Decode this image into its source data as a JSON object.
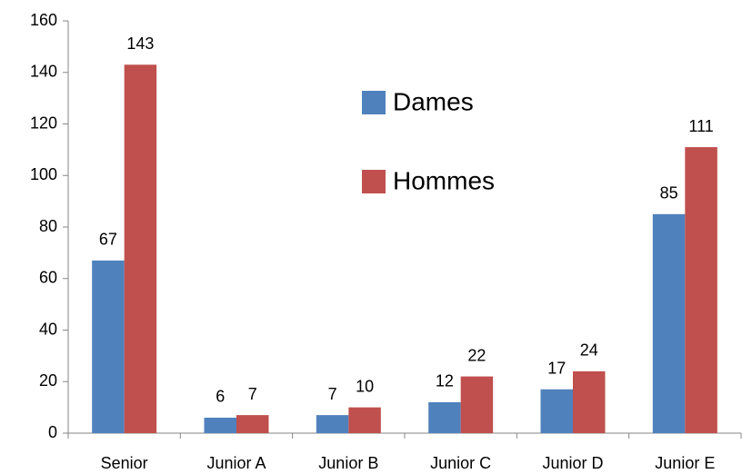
{
  "chart_data": {
    "type": "bar",
    "categories": [
      "Senior",
      "Junior A",
      "Junior B",
      "Junior C",
      "Junior D",
      "Junior E"
    ],
    "series": [
      {
        "name": "Dames",
        "color": "#4f81bd",
        "values": [
          67,
          6,
          7,
          12,
          17,
          85
        ]
      },
      {
        "name": "Hommes",
        "color": "#c0504d",
        "values": [
          143,
          7,
          10,
          22,
          24,
          111
        ]
      }
    ],
    "ylim": [
      0,
      160
    ],
    "yticks": [
      0,
      20,
      40,
      60,
      80,
      100,
      120,
      140,
      160
    ],
    "grid": false,
    "legend": "top-center",
    "data_labels": true
  }
}
